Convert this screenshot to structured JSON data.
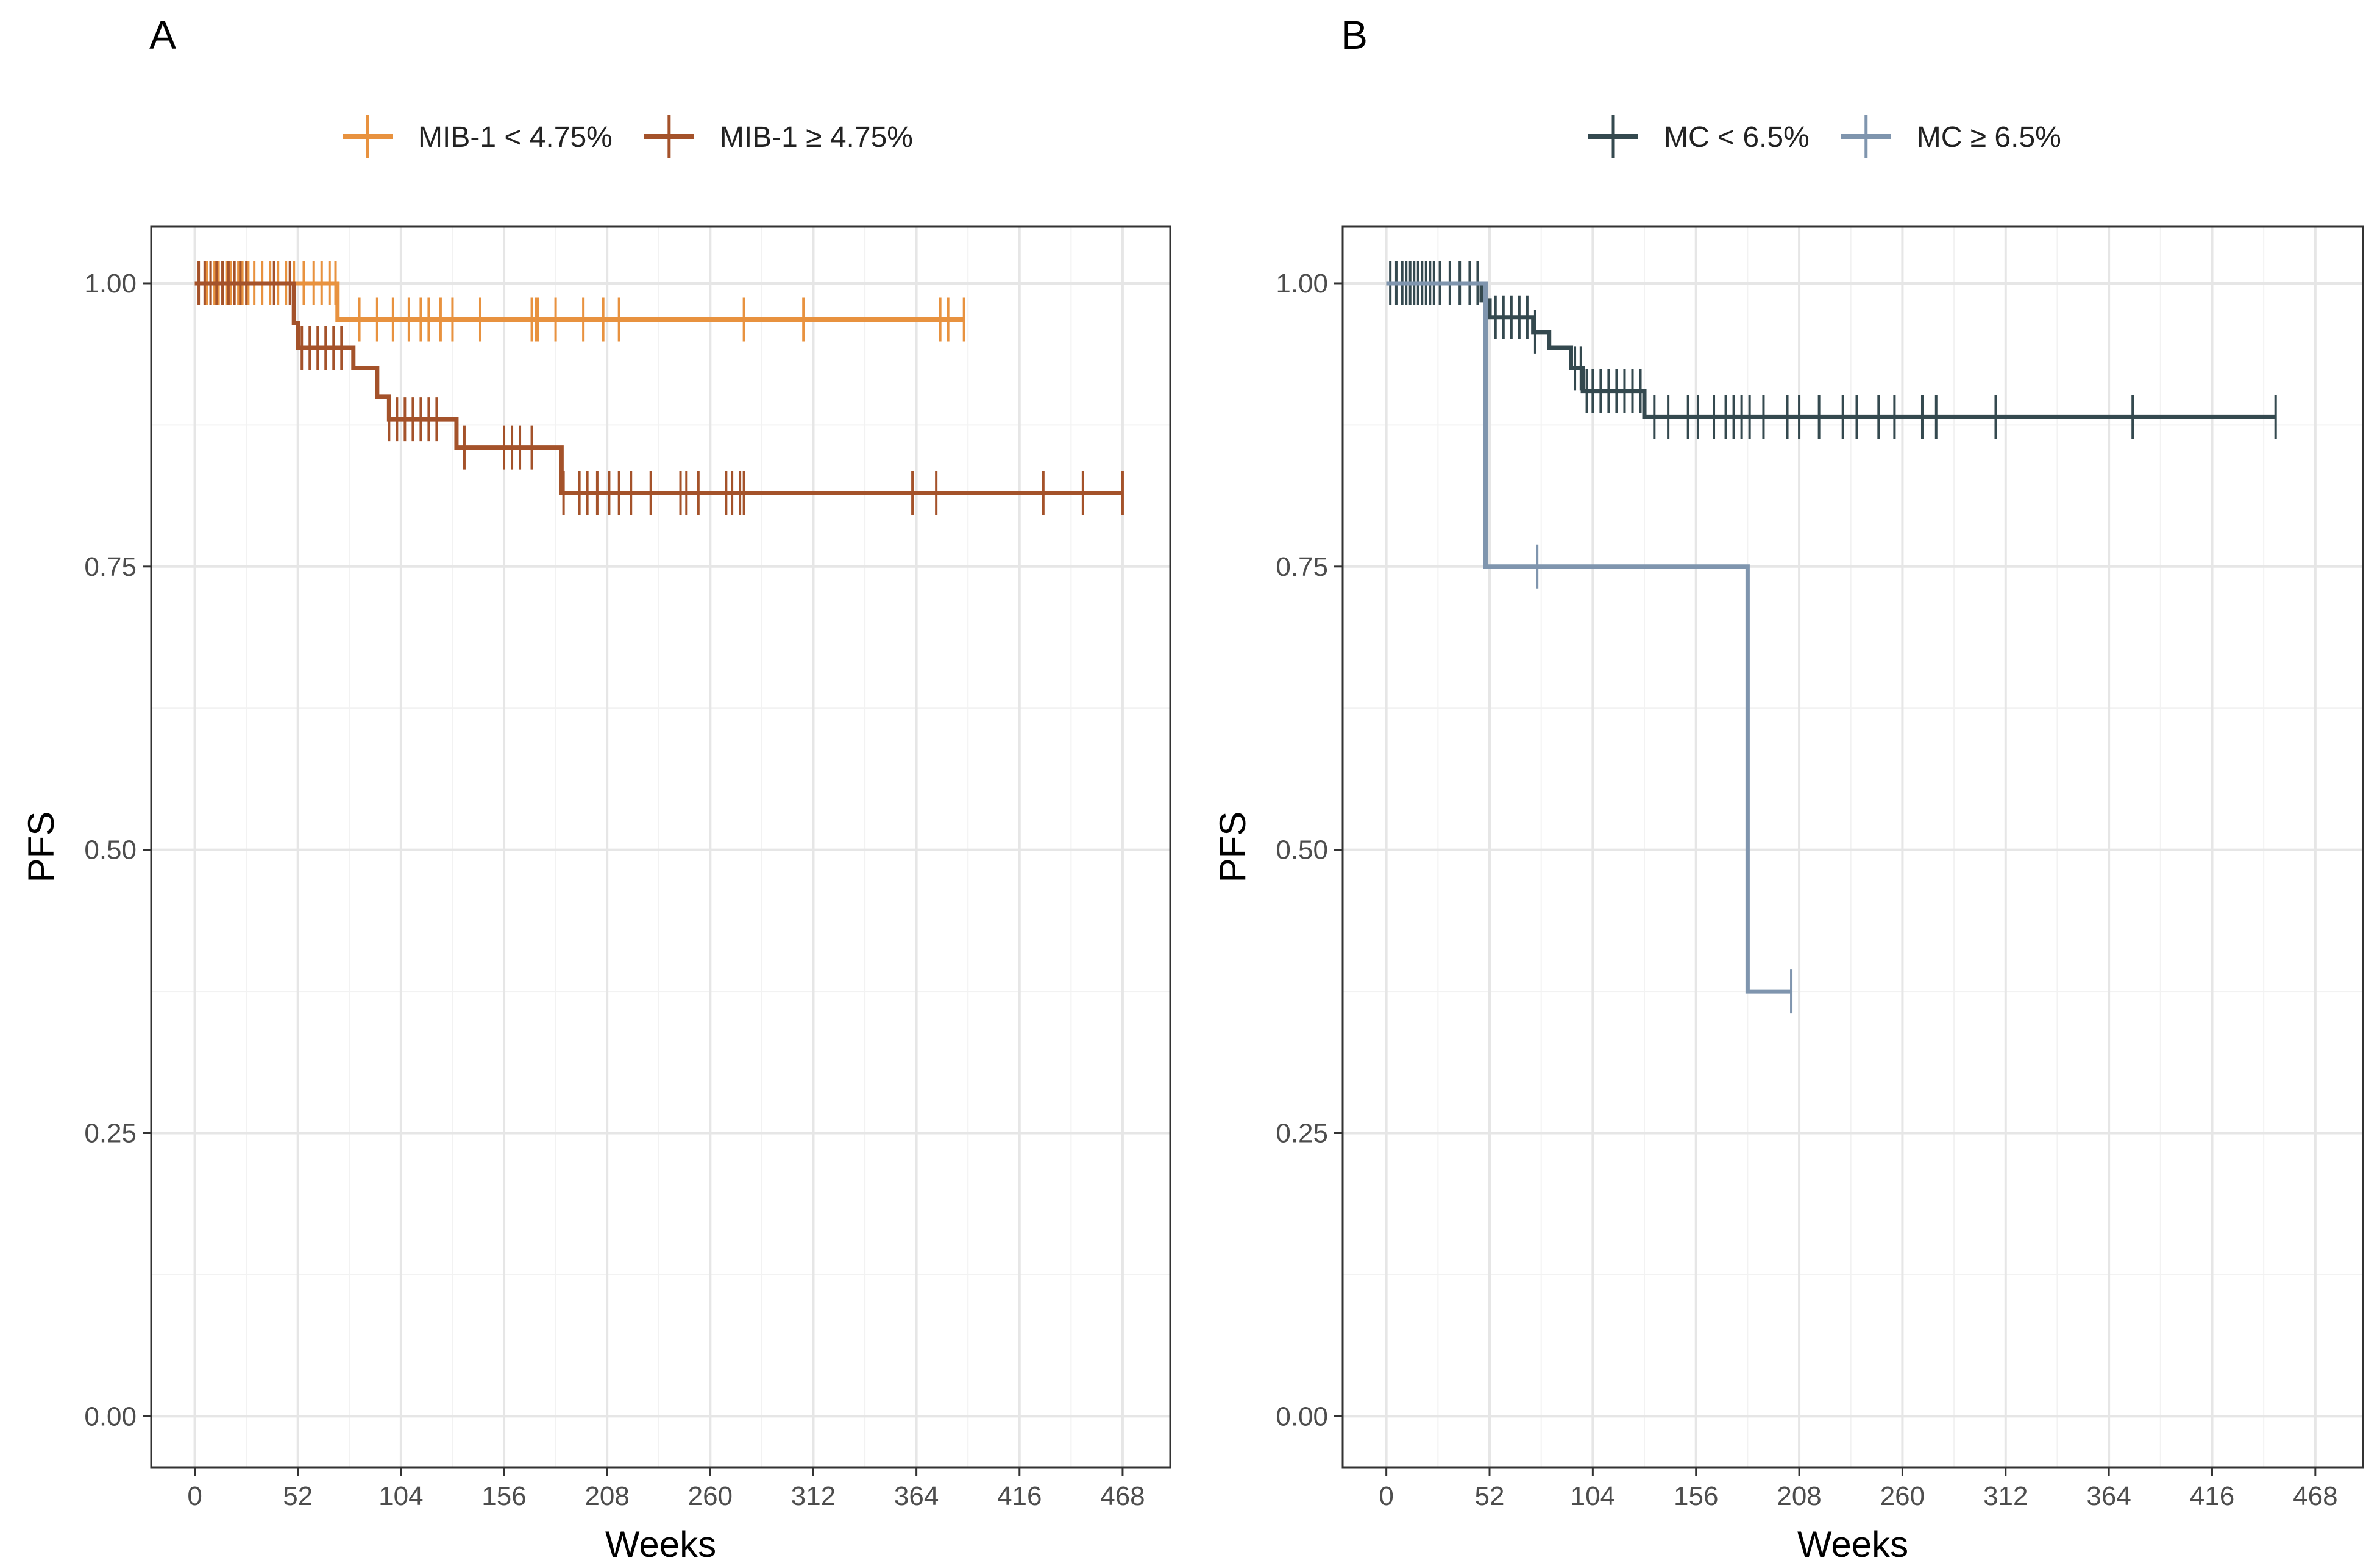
{
  "figure": {
    "panels": [
      "A",
      "B"
    ]
  },
  "chart_data": [
    {
      "type": "line",
      "subtype": "kaplan-meier",
      "panel_label": "A",
      "xlabel": "Weeks",
      "ylabel": "PFS",
      "xticks": [
        0,
        52,
        104,
        156,
        208,
        260,
        312,
        364,
        416,
        468
      ],
      "xlim": [
        -22,
        492
      ],
      "yticks": [
        0.0,
        0.25,
        0.5,
        0.75,
        1.0
      ],
      "ytick_labels": [
        "0.00",
        "0.25",
        "0.50",
        "0.75",
        "1.00"
      ],
      "ylim": [
        -0.045,
        1.05
      ],
      "grid": true,
      "legend_position": "top",
      "series": [
        {
          "name": "MIB-1 < 4.75%",
          "color": "#E8923F",
          "steps": [
            [
              0,
              1.0
            ],
            [
              72,
              0.968
            ],
            [
              388,
              0.968
            ]
          ],
          "censor_times": [
            2,
            6,
            8,
            10,
            12,
            14,
            16,
            18,
            20,
            22,
            24,
            27,
            30,
            34,
            38,
            42,
            46,
            50,
            55,
            60,
            64,
            68,
            71,
            83,
            92,
            100,
            108,
            114,
            118,
            124,
            130,
            144,
            170,
            172,
            173,
            182,
            196,
            206,
            214,
            277,
            307,
            376,
            380,
            388
          ]
        },
        {
          "name": "MIB-1 ≥ 4.75%",
          "color": "#A4522A",
          "steps": [
            [
              0,
              1.0
            ],
            [
              50,
              0.965
            ],
            [
              52,
              0.943
            ],
            [
              80,
              0.925
            ],
            [
              92,
              0.9
            ],
            [
              98,
              0.88
            ],
            [
              132,
              0.855
            ],
            [
              185,
              0.815
            ],
            [
              468,
              0.815
            ]
          ],
          "censor_times": [
            2,
            5,
            8,
            11,
            14,
            17,
            20,
            23,
            26,
            40,
            48,
            54,
            58,
            62,
            66,
            70,
            74,
            98,
            102,
            106,
            110,
            114,
            118,
            122,
            136,
            156,
            160,
            164,
            170,
            186,
            194,
            198,
            203,
            209,
            214,
            220,
            230,
            245,
            248,
            254,
            268,
            271,
            275,
            277,
            362,
            374,
            428,
            448,
            468
          ]
        }
      ]
    },
    {
      "type": "line",
      "subtype": "kaplan-meier",
      "panel_label": "B",
      "xlabel": "Weeks",
      "ylabel": "PFS",
      "xticks": [
        0,
        52,
        104,
        156,
        208,
        260,
        312,
        364,
        416,
        468
      ],
      "xlim": [
        -22,
        492
      ],
      "yticks": [
        0.0,
        0.25,
        0.5,
        0.75,
        1.0
      ],
      "ytick_labels": [
        "0.00",
        "0.25",
        "0.50",
        "0.75",
        "1.00"
      ],
      "ylim": [
        -0.045,
        1.05
      ],
      "grid": true,
      "legend_position": "top",
      "series": [
        {
          "name": "MC < 6.5%",
          "color": "#34494F",
          "steps": [
            [
              0,
              1.0
            ],
            [
              48,
              0.985
            ],
            [
              52,
              0.97
            ],
            [
              74,
              0.957
            ],
            [
              82,
              0.943
            ],
            [
              93,
              0.925
            ],
            [
              99,
              0.905
            ],
            [
              130,
              0.882
            ],
            [
              448,
              0.882
            ]
          ],
          "censor_times": [
            2,
            5,
            8,
            10,
            12,
            14,
            16,
            18,
            20,
            22,
            24,
            27,
            32,
            37,
            42,
            46,
            55,
            59,
            63,
            67,
            71,
            75,
            95,
            98,
            101,
            104,
            108,
            112,
            116,
            120,
            124,
            128,
            135,
            142,
            152,
            157,
            165,
            171,
            175,
            179,
            183,
            190,
            202,
            208,
            218,
            230,
            237,
            248,
            256,
            270,
            277,
            307,
            376,
            448
          ]
        },
        {
          "name": "MC ≥ 6.5%",
          "color": "#7F95AE",
          "steps": [
            [
              0,
              1.0
            ],
            [
              50,
              0.75
            ],
            [
              182,
              0.375
            ],
            [
              204,
              0.375
            ]
          ],
          "censor_times": [
            76,
            204
          ]
        }
      ]
    }
  ]
}
